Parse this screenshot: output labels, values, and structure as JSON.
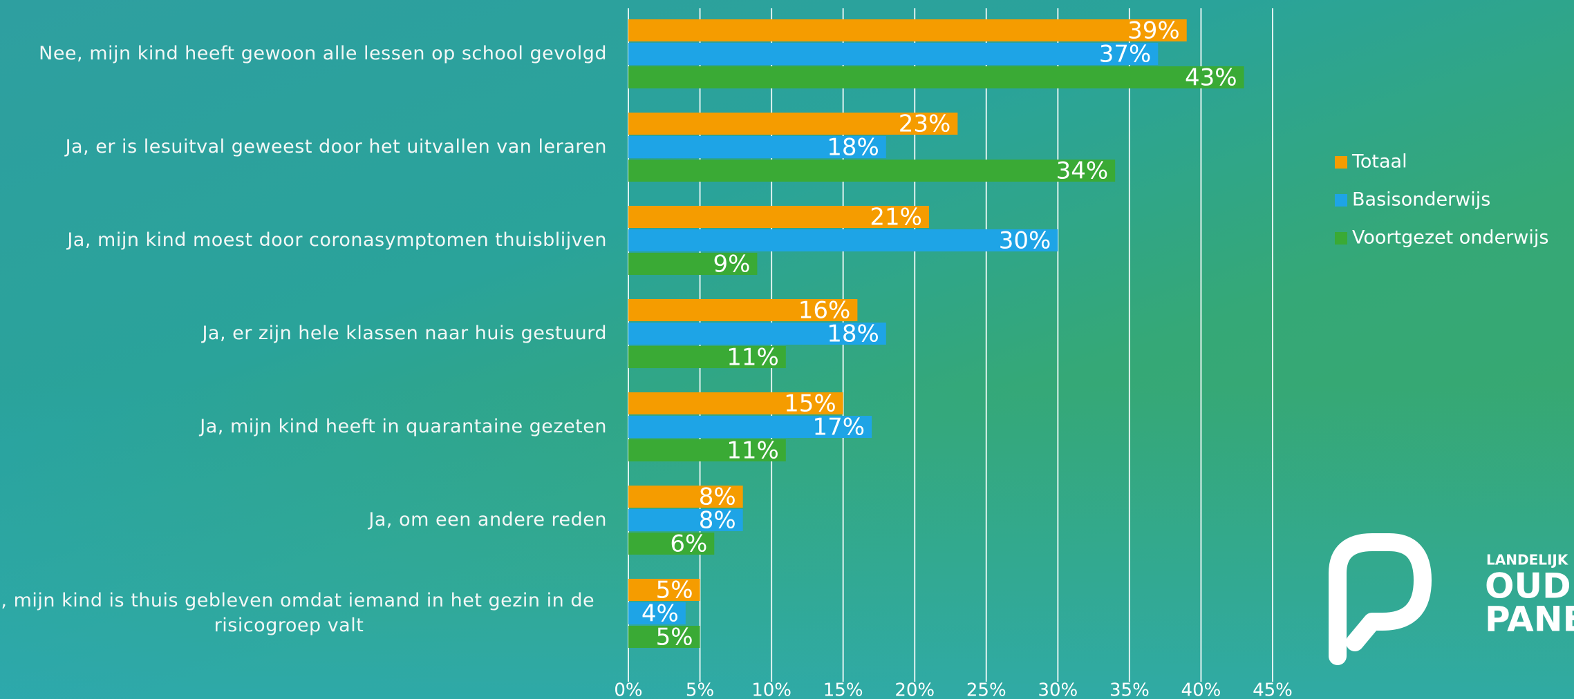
{
  "chart_data": {
    "type": "barh",
    "categories": [
      "Nee, mijn kind heeft gewoon alle lessen op school gevolgd",
      "Ja, er is lesuitval geweest door het uitvallen van leraren",
      "Ja, mijn kind moest door coronasymptomen thuisblijven",
      "Ja, er zijn hele klassen naar huis gestuurd",
      "Ja, mijn kind heeft in quarantaine gezeten",
      "Ja, om een andere reden",
      "Ja, mijn kind is thuis gebleven omdat iemand in het gezin in de risicogroep valt"
    ],
    "series": [
      {
        "name": "Totaal",
        "color": "#f59c00",
        "values": [
          39,
          23,
          21,
          16,
          15,
          8,
          5
        ],
        "value_labels": [
          "39%",
          "23%",
          "21%",
          "16%",
          "15%",
          "8%",
          "5%"
        ]
      },
      {
        "name": "Basisonderwijs",
        "color": "#1ea4e6",
        "values": [
          37,
          18,
          30,
          18,
          17,
          8,
          4
        ],
        "value_labels": [
          "37%",
          "18%",
          "30%",
          "18%",
          "17%",
          "8%",
          "4%"
        ]
      },
      {
        "name": "Voortgezet onderwijs",
        "color": "#3aaa35",
        "values": [
          43,
          34,
          9,
          11,
          11,
          6,
          5
        ],
        "value_labels": [
          "43%",
          "34%",
          "9%",
          "11%",
          "11%",
          "6%",
          "5%"
        ]
      }
    ],
    "xlim": [
      0,
      45
    ],
    "xticks": [
      {
        "value": 0,
        "label": "0%"
      },
      {
        "value": 5,
        "label": "5%"
      },
      {
        "value": 10,
        "label": "10%"
      },
      {
        "value": 15,
        "label": "15%"
      },
      {
        "value": 20,
        "label": "20%"
      },
      {
        "value": 25,
        "label": "25%"
      },
      {
        "value": 30,
        "label": "30%"
      },
      {
        "value": 35,
        "label": "35%"
      },
      {
        "value": 40,
        "label": "40%"
      },
      {
        "value": 45,
        "label": "45%"
      }
    ],
    "grid": true,
    "legend": "right"
  },
  "logo": {
    "line1": "LANDELIJK",
    "line2": "OUDER",
    "line3": "PANEL"
  }
}
